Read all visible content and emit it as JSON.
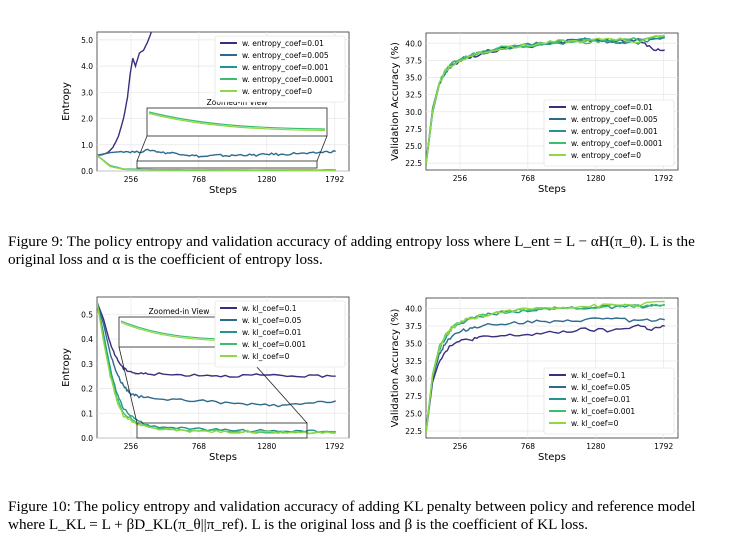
{
  "figure9": {
    "caption_label": "Figure 9:",
    "caption_text": "The policy entropy and validation accuracy of adding entropy loss where L_ent = L − αH(π_θ). L is the original loss and α is the coefficient of entropy loss.",
    "caption_math": {
      "loss_symbol": "L",
      "subscript": "ent",
      "formula_rhs": "= L − αℋ(π_θ)."
    },
    "left_chart": {
      "type": "line",
      "ylabel": "Entropy",
      "xlabel": "Steps",
      "xticks": [
        "256",
        "768",
        "1280",
        "1792"
      ],
      "yticks": [
        "0.0",
        "1.0",
        "2.0",
        "3.0",
        "4.0",
        "5.0"
      ],
      "inset_label": "Zoomed-in View",
      "legend": [
        "w. entropy_coef=0.01",
        "w. entropy_coef=0.005",
        "w. entropy_coef=0.001",
        "w. entropy_coef=0.0001",
        "w. entropy_coef=0"
      ]
    },
    "right_chart": {
      "type": "line",
      "ylabel": "Validation Accuracy (%)",
      "xlabel": "Steps",
      "xticks": [
        "256",
        "768",
        "1280",
        "1792"
      ],
      "yticks": [
        "22.5",
        "25.0",
        "27.5",
        "30.0",
        "32.5",
        "35.0",
        "37.5",
        "40.0"
      ],
      "legend": [
        "w. entropy_coef=0.01",
        "w. entropy_coef=0.005",
        "w. entropy_coef=0.001",
        "w. entropy_coef=0.0001",
        "w. entropy_coef=0"
      ]
    }
  },
  "figure10": {
    "caption_label": "Figure 10:",
    "caption_text": "The policy entropy and validation accuracy of adding KL penalty between policy and reference model where L_KL = L + βD_KL(π_θ||π_ref). L is the original loss and β is the coefficient of KL loss.",
    "left_chart": {
      "type": "line",
      "ylabel": "Entropy",
      "xlabel": "Steps",
      "xticks": [
        "256",
        "768",
        "1280",
        "1792"
      ],
      "yticks": [
        "0.0",
        "0.1",
        "0.2",
        "0.3",
        "0.4",
        "0.5"
      ],
      "inset_label": "Zoomed-in View",
      "legend": [
        "w. kl_coef=0.1",
        "w. kl_coef=0.05",
        "w. kl_coef=0.01",
        "w. kl_coef=0.001",
        "w. kl_coef=0"
      ]
    },
    "right_chart": {
      "type": "line",
      "ylabel": "Validation Accuracy (%)",
      "xlabel": "Steps",
      "xticks": [
        "256",
        "768",
        "1280",
        "1792"
      ],
      "yticks": [
        "22.5",
        "25.0",
        "27.5",
        "30.0",
        "32.5",
        "35.0",
        "37.5",
        "40.0"
      ],
      "legend": [
        "w. kl_coef=0.1",
        "w. kl_coef=0.05",
        "w. kl_coef=0.01",
        "w. kl_coef=0.001",
        "w. kl_coef=0"
      ]
    }
  },
  "series_colors": [
    "#3b2e7e",
    "#2e6a8e",
    "#22968a",
    "#3bbf6e",
    "#8fd744"
  ],
  "chart_data": [
    {
      "type": "line",
      "title": "",
      "xlabel": "Steps",
      "ylabel": "Entropy",
      "xlim": [
        0,
        1900
      ],
      "ylim": [
        0,
        5.3
      ],
      "grid": true,
      "legend_placement": "top-right",
      "series": [
        {
          "name": "w. entropy_coef=0.01",
          "x": [
            0,
            40,
            80,
            120,
            160,
            200,
            230,
            250,
            270,
            290,
            320,
            350,
            380,
            410
          ],
          "values": [
            0.6,
            0.62,
            0.7,
            0.9,
            1.3,
            2.0,
            2.8,
            3.7,
            4.3,
            4.0,
            4.5,
            4.6,
            4.9,
            5.3
          ]
        },
        {
          "name": "w. entropy_coef=0.005",
          "x": [
            0,
            100,
            200,
            300,
            400,
            500,
            600,
            700,
            800,
            900,
            1000,
            1100,
            1200,
            1300,
            1400,
            1500,
            1600,
            1700,
            1800
          ],
          "values": [
            0.6,
            0.7,
            0.75,
            0.72,
            0.8,
            0.7,
            0.68,
            0.6,
            0.55,
            0.6,
            0.58,
            0.62,
            0.6,
            0.65,
            0.62,
            0.68,
            0.66,
            0.72,
            0.75
          ]
        },
        {
          "name": "w. entropy_coef=0.001",
          "x": [
            0,
            100,
            200,
            400,
            800,
            1200,
            1600,
            1800
          ],
          "values": [
            0.6,
            0.2,
            0.08,
            0.05,
            0.04,
            0.04,
            0.04,
            0.04
          ]
        },
        {
          "name": "w. entropy_coef=0.0001",
          "x": [
            0,
            100,
            200,
            400,
            800,
            1200,
            1600,
            1800
          ],
          "values": [
            0.6,
            0.18,
            0.07,
            0.04,
            0.035,
            0.03,
            0.03,
            0.03
          ]
        },
        {
          "name": "w. entropy_coef=0",
          "x": [
            0,
            100,
            200,
            400,
            800,
            1200,
            1600,
            1800
          ],
          "values": [
            0.6,
            0.17,
            0.07,
            0.04,
            0.03,
            0.03,
            0.03,
            0.03
          ]
        }
      ]
    },
    {
      "type": "line",
      "title": "",
      "xlabel": "Steps",
      "ylabel": "Validation Accuracy (%)",
      "xlim": [
        0,
        1900
      ],
      "ylim": [
        21.5,
        41.5
      ],
      "grid": true,
      "legend_placement": "bottom-right",
      "series": [
        {
          "name": "w. entropy_coef=0.01",
          "x": [
            0,
            50,
            100,
            150,
            200,
            300,
            400,
            600,
            800,
            1000,
            1200,
            1400,
            1600,
            1700,
            1800
          ],
          "values": [
            22.3,
            30,
            34,
            35.8,
            36.8,
            37.8,
            38.3,
            39.3,
            39.6,
            40.2,
            40.4,
            40.3,
            40.5,
            39.2,
            39.0
          ]
        },
        {
          "name": "w. entropy_coef=0.005",
          "x": [
            0,
            50,
            100,
            150,
            200,
            300,
            400,
            600,
            800,
            1000,
            1200,
            1400,
            1600,
            1800
          ],
          "values": [
            22.4,
            30.5,
            34.2,
            36,
            37,
            38,
            38.6,
            39.3,
            39.8,
            40.2,
            40.5,
            40.1,
            40.4,
            40.8
          ]
        },
        {
          "name": "w. entropy_coef=0.001",
          "x": [
            0,
            50,
            100,
            150,
            200,
            300,
            400,
            600,
            800,
            1000,
            1200,
            1400,
            1600,
            1800
          ],
          "values": [
            22.2,
            29.8,
            34,
            35.9,
            36.9,
            37.9,
            38.5,
            39.4,
            39.9,
            40.0,
            40.6,
            40.2,
            40.1,
            40.9
          ]
        },
        {
          "name": "w. entropy_coef=0.0001",
          "x": [
            0,
            50,
            100,
            150,
            200,
            300,
            400,
            600,
            800,
            1000,
            1200,
            1400,
            1600,
            1800
          ],
          "values": [
            22.5,
            30.2,
            34.4,
            36.1,
            37.1,
            38,
            38.7,
            39.5,
            39.7,
            40.3,
            40.1,
            40.5,
            40.6,
            41.0
          ]
        },
        {
          "name": "w. entropy_coef=0",
          "x": [
            0,
            50,
            100,
            150,
            200,
            300,
            400,
            600,
            800,
            1000,
            1200,
            1400,
            1600,
            1800
          ],
          "values": [
            22.3,
            30.1,
            34.1,
            36.0,
            36.8,
            37.9,
            38.6,
            39.3,
            39.8,
            40.3,
            40.3,
            40.8,
            40.2,
            41.2
          ]
        }
      ]
    },
    {
      "type": "line",
      "title": "",
      "xlabel": "Steps",
      "ylabel": "Entropy",
      "xlim": [
        0,
        1900
      ],
      "ylim": [
        0,
        0.57
      ],
      "grid": true,
      "legend_placement": "top-right",
      "series": [
        {
          "name": "w. kl_coef=0.1",
          "x": [
            0,
            50,
            100,
            150,
            200,
            250,
            300,
            400,
            600,
            800,
            1000,
            1200,
            1400,
            1600,
            1800
          ],
          "values": [
            0.55,
            0.48,
            0.38,
            0.32,
            0.28,
            0.27,
            0.26,
            0.26,
            0.255,
            0.255,
            0.25,
            0.255,
            0.25,
            0.25,
            0.25
          ]
        },
        {
          "name": "w. kl_coef=0.05",
          "x": [
            0,
            50,
            100,
            150,
            200,
            250,
            300,
            400,
            600,
            800,
            1000,
            1200,
            1400,
            1600,
            1800
          ],
          "values": [
            0.55,
            0.46,
            0.34,
            0.26,
            0.21,
            0.18,
            0.17,
            0.16,
            0.155,
            0.15,
            0.14,
            0.135,
            0.13,
            0.14,
            0.15
          ]
        },
        {
          "name": "w. kl_coef=0.01",
          "x": [
            0,
            50,
            100,
            150,
            200,
            300,
            400,
            600,
            800,
            1000,
            1200,
            1400,
            1600,
            1800
          ],
          "values": [
            0.55,
            0.42,
            0.28,
            0.18,
            0.12,
            0.07,
            0.05,
            0.04,
            0.035,
            0.03,
            0.03,
            0.028,
            0.027,
            0.026
          ]
        },
        {
          "name": "w. kl_coef=0.001",
          "x": [
            0,
            50,
            100,
            150,
            200,
            300,
            400,
            600,
            800,
            1000,
            1200,
            1400,
            1600,
            1800
          ],
          "values": [
            0.55,
            0.4,
            0.26,
            0.16,
            0.1,
            0.06,
            0.045,
            0.035,
            0.03,
            0.027,
            0.025,
            0.024,
            0.023,
            0.022
          ]
        },
        {
          "name": "w. kl_coef=0",
          "x": [
            0,
            50,
            100,
            150,
            200,
            300,
            400,
            600,
            800,
            1000,
            1200,
            1400,
            1600,
            1800
          ],
          "values": [
            0.55,
            0.39,
            0.25,
            0.15,
            0.09,
            0.055,
            0.04,
            0.03,
            0.027,
            0.025,
            0.023,
            0.022,
            0.021,
            0.02
          ]
        }
      ]
    },
    {
      "type": "line",
      "title": "",
      "xlabel": "Steps",
      "ylabel": "Validation Accuracy (%)",
      "xlim": [
        0,
        1900
      ],
      "ylim": [
        21.5,
        41.5
      ],
      "grid": true,
      "legend_placement": "bottom-right",
      "series": [
        {
          "name": "w. kl_coef=0.1",
          "x": [
            0,
            50,
            100,
            150,
            200,
            300,
            400,
            600,
            800,
            1000,
            1200,
            1400,
            1600,
            1700,
            1800
          ],
          "values": [
            22.2,
            29.5,
            32.5,
            34.0,
            35.0,
            35.5,
            35.8,
            36.1,
            36.3,
            36.6,
            37.0,
            36.8,
            37.6,
            37.0,
            37.5
          ]
        },
        {
          "name": "w. kl_coef=0.05",
          "x": [
            0,
            50,
            100,
            150,
            200,
            300,
            400,
            600,
            800,
            1000,
            1200,
            1400,
            1600,
            1800
          ],
          "values": [
            22.4,
            30.0,
            33.5,
            35.2,
            36.1,
            37.0,
            37.5,
            37.9,
            38.1,
            38.0,
            38.4,
            38.6,
            38.2,
            38.4
          ]
        },
        {
          "name": "w. kl_coef=0.01",
          "x": [
            0,
            50,
            100,
            150,
            200,
            300,
            400,
            600,
            800,
            1000,
            1200,
            1400,
            1600,
            1800
          ],
          "values": [
            22.3,
            30.3,
            34.2,
            36.0,
            37.2,
            38.3,
            38.9,
            39.5,
            39.8,
            40.0,
            40.1,
            40.2,
            40.3,
            40.5
          ]
        },
        {
          "name": "w. kl_coef=0.001",
          "x": [
            0,
            50,
            100,
            150,
            200,
            300,
            400,
            600,
            800,
            1000,
            1200,
            1400,
            1600,
            1800
          ],
          "values": [
            22.5,
            30.6,
            34.5,
            36.2,
            37.4,
            38.5,
            39.0,
            39.5,
            39.9,
            40.1,
            40.0,
            40.4,
            40.3,
            40.6
          ]
        },
        {
          "name": "w. kl_coef=0",
          "x": [
            0,
            50,
            100,
            150,
            200,
            300,
            400,
            600,
            800,
            1000,
            1200,
            1400,
            1600,
            1800
          ],
          "values": [
            22.2,
            30.4,
            34.3,
            36.1,
            37.3,
            38.4,
            38.9,
            39.6,
            40.0,
            40.2,
            40.3,
            40.5,
            40.5,
            41.0
          ]
        }
      ]
    }
  ]
}
